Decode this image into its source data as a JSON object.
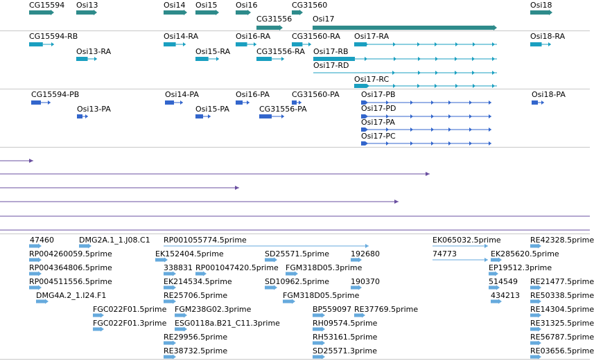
{
  "colors": {
    "gene": "#2e8b8b",
    "rna": "#1a9fc0",
    "protein": "#3366cc",
    "hit": "#6a4fa0",
    "est": "#66aadd",
    "separator": "#c8c8c8"
  },
  "tracks": {
    "genes": [
      {
        "label": "CG15594"
      },
      {
        "label": "Osi13"
      },
      {
        "label": "Osi14"
      },
      {
        "label": "Osi15"
      },
      {
        "label": "Osi16"
      },
      {
        "label": "CG31560"
      },
      {
        "label": "CG31556"
      },
      {
        "label": "Osi17"
      },
      {
        "label": "Osi18"
      }
    ],
    "transcripts": [
      {
        "label": "CG15594-RB"
      },
      {
        "label": "Osi13-RA"
      },
      {
        "label": "Osi14-RA"
      },
      {
        "label": "Osi15-RA"
      },
      {
        "label": "Osi16-RA"
      },
      {
        "label": "CG31560-RA"
      },
      {
        "label": "CG31556-RA"
      },
      {
        "label": "Osi17-RA"
      },
      {
        "label": "Osi17-RB"
      },
      {
        "label": "Osi17-RD"
      },
      {
        "label": "Osi17-RC"
      },
      {
        "label": "Osi18-RA"
      }
    ],
    "proteins": [
      {
        "label": "CG15594-PB"
      },
      {
        "label": "Osi13-PA"
      },
      {
        "label": "Osi14-PA"
      },
      {
        "label": "Osi15-PA"
      },
      {
        "label": "Osi16-PA"
      },
      {
        "label": "CG31560-PA"
      },
      {
        "label": "CG31556-PA"
      },
      {
        "label": "Osi17-PB"
      },
      {
        "label": "Osi17-PD"
      },
      {
        "label": "Osi17-PA"
      },
      {
        "label": "Osi17-PC"
      },
      {
        "label": "Osi18-PA"
      }
    ],
    "ests": [
      {
        "label": "47460"
      },
      {
        "label": "DMG2A.1_1.J08.C1"
      },
      {
        "label": "RP001055774.5prime"
      },
      {
        "label": "EK065032.5prime"
      },
      {
        "label": "RE42328.5prime"
      },
      {
        "label": "RP004260059.5prime"
      },
      {
        "label": "EK152404.5prime"
      },
      {
        "label": "SD25571.5prime"
      },
      {
        "label": "192680"
      },
      {
        "label": "74773"
      },
      {
        "label": "EK285620.5prime"
      },
      {
        "label": "RP004364806.5prime"
      },
      {
        "label": "338831"
      },
      {
        "label": "RP001047420.5prime"
      },
      {
        "label": "FGM318D05.3prime"
      },
      {
        "label": "EP19512.3prime"
      },
      {
        "label": "RP004511556.5prime"
      },
      {
        "label": "EK214534.5prime"
      },
      {
        "label": "SD10962.5prime"
      },
      {
        "label": "190370"
      },
      {
        "label": "514549"
      },
      {
        "label": "RE21477.5prime"
      },
      {
        "label": "DMG4A.2_1.I24.F1"
      },
      {
        "label": "RE25706.5prime"
      },
      {
        "label": "FGM318D05.5prime"
      },
      {
        "label": "434213"
      },
      {
        "label": "RE50338.5prime"
      },
      {
        "label": "FGC022F01.5prime"
      },
      {
        "label": "FGM238G02.3prime"
      },
      {
        "label": "BP559097"
      },
      {
        "label": "RE37769.5prime"
      },
      {
        "label": "RE14304.5prime"
      },
      {
        "label": "FGC022F01.3prime"
      },
      {
        "label": "ESG0118a.B21_C11.3prime"
      },
      {
        "label": "RH09574.5prime"
      },
      {
        "label": "RE31325.5prime"
      },
      {
        "label": "RE29956.5prime"
      },
      {
        "label": "RH53161.5prime"
      },
      {
        "label": "RE56787.5prime"
      },
      {
        "label": "RE38732.5prime"
      },
      {
        "label": "SD25571.3prime"
      },
      {
        "label": "RE03656.5prime"
      }
    ]
  }
}
